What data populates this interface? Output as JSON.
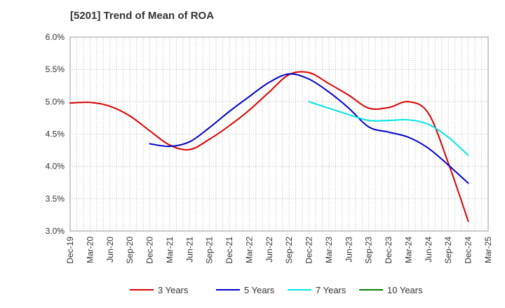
{
  "chart_data": {
    "type": "line",
    "title": "[5201]  Trend of Mean of ROA",
    "xlabel": "",
    "ylabel": "",
    "x": [
      "Dec-19",
      "Mar-20",
      "Jun-20",
      "Sep-20",
      "Dec-20",
      "Mar-21",
      "Jun-21",
      "Sep-21",
      "Dec-21",
      "Mar-22",
      "Jun-22",
      "Sep-22",
      "Dec-22",
      "Mar-23",
      "Jun-23",
      "Sep-23",
      "Dec-23",
      "Mar-24",
      "Jun-24",
      "Sep-24",
      "Dec-24",
      "Mar-25"
    ],
    "ylim": [
      3.0,
      6.0
    ],
    "yticks": [
      "3.0%",
      "3.5%",
      "4.0%",
      "4.5%",
      "5.0%",
      "5.5%",
      "6.0%"
    ],
    "grid": true,
    "legend_position": "bottom",
    "series": [
      {
        "name": "3 Years",
        "color": "#dd0000",
        "values": [
          4.98,
          4.99,
          4.93,
          4.78,
          4.55,
          4.33,
          4.26,
          4.42,
          4.63,
          4.87,
          5.15,
          5.42,
          5.45,
          5.28,
          5.1,
          4.9,
          4.91,
          5.0,
          4.82,
          4.05,
          3.15,
          null
        ]
      },
      {
        "name": "5 Years",
        "color": "#0000cc",
        "values": [
          null,
          null,
          null,
          null,
          4.35,
          4.31,
          4.38,
          4.6,
          4.85,
          5.08,
          5.3,
          5.43,
          5.35,
          5.15,
          4.9,
          4.61,
          4.53,
          4.45,
          4.28,
          4.02,
          3.74,
          null
        ]
      },
      {
        "name": "7 Years",
        "color": "#00e5e5",
        "values": [
          null,
          null,
          null,
          null,
          null,
          null,
          null,
          null,
          null,
          null,
          null,
          null,
          5.0,
          4.9,
          4.8,
          4.71,
          4.71,
          4.72,
          4.65,
          4.45,
          4.17,
          null
        ]
      },
      {
        "name": "10 Years",
        "color": "#008000",
        "values": [
          null,
          null,
          null,
          null,
          null,
          null,
          null,
          null,
          null,
          null,
          null,
          null,
          null,
          null,
          null,
          null,
          null,
          null,
          null,
          null,
          null,
          null
        ]
      }
    ]
  }
}
